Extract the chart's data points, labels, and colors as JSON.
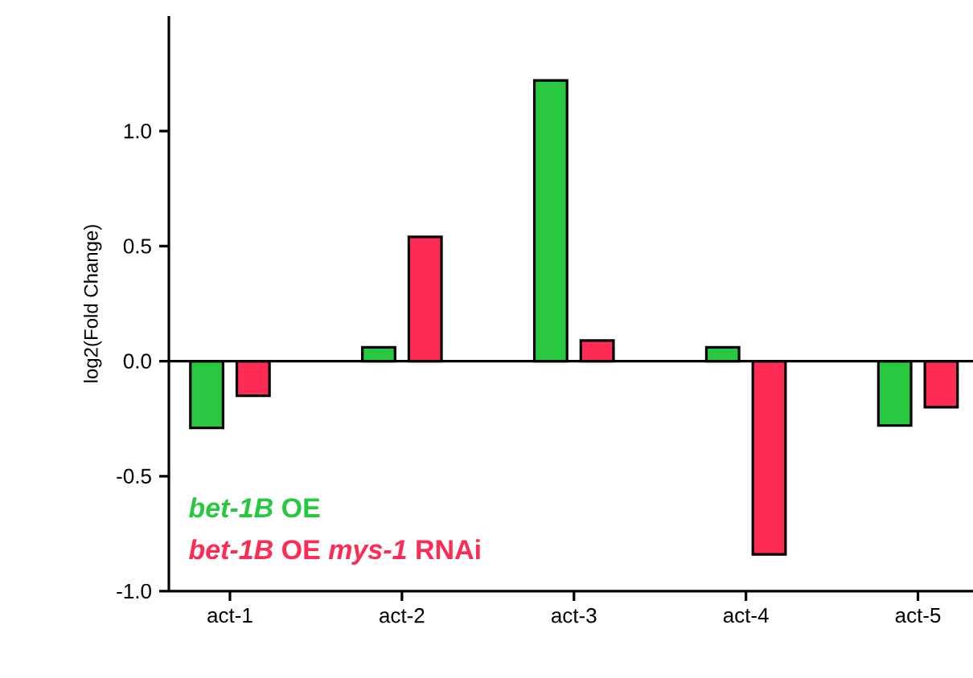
{
  "chart_data": {
    "type": "bar",
    "ylabel": "log2(Fold Change)",
    "categories": [
      "act-1",
      "act-2",
      "act-3",
      "act-4",
      "act-5"
    ],
    "series": [
      {
        "name": "*bet-1B* OE",
        "color": "#28c840",
        "values": [
          -0.29,
          0.06,
          1.22,
          0.06,
          -0.28
        ]
      },
      {
        "name": "*bet-1B* OE *mys-1* RNAi",
        "color": "#fe2c54",
        "values": [
          -0.15,
          0.54,
          0.09,
          -0.84,
          -0.2
        ]
      }
    ],
    "ylim": [
      -1.0,
      1.5
    ],
    "yticks": [
      {
        "value": -1.0,
        "label": "-1.0"
      },
      {
        "value": -0.5,
        "label": "-0.5"
      },
      {
        "value": 0.0,
        "label": "0.0"
      },
      {
        "value": 0.5,
        "label": "0.5"
      },
      {
        "value": 1.0,
        "label": "1.0"
      }
    ],
    "ref_lines": [
      {
        "axis": "y",
        "value": 0.0,
        "color": "#000000"
      }
    ],
    "legend": "bottom left"
  }
}
